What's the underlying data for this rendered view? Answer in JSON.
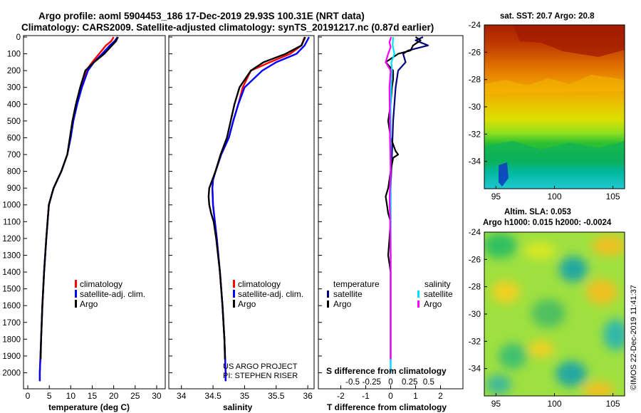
{
  "header": {
    "line1": "Argo profile: aoml 5904453_186 17-Dec-2019 29.93S 100.31E (NRT data)",
    "line2": "Climatology: CARS2009. Satellite-adjusted climatology: synTS_20191217.nc (0.87d earlier)"
  },
  "colors": {
    "red": "#ff0000",
    "blue": "#0000ff",
    "black": "#000000",
    "cyan": "#00e0ff",
    "magenta": "#ff00ff",
    "navy": "#000080"
  },
  "legends": {
    "temp": [
      "climatology",
      "satellite-adj. clim.",
      "Argo"
    ],
    "sal": [
      "climatology",
      "satellite-adj. clim.",
      "Argo"
    ],
    "diff_left_title": "temperature",
    "diff_left": [
      "satellite",
      "Argo"
    ],
    "diff_right_title": "salinity",
    "diff_right": [
      "satellite",
      "Argo"
    ]
  },
  "credits": {
    "project": "US ARGO PROJECT",
    "pi": "PI: STEPHEN RISER"
  },
  "diff_top_label": "S difference from climatology",
  "sst_title": "sat. SST: 20.7 Argo: 20.8",
  "sla_title1": "Altim. SLA: 0.053",
  "sla_title2": "Argo h1000: 0.015 h2000: -0.0024",
  "stamp": "©IMOS 22-Dec-2019 11:41:37",
  "chart_data": [
    {
      "type": "line",
      "name": "temperature-profile",
      "xlabel": "temperature (deg C)",
      "ylabel": "",
      "xlim": [
        -1,
        32
      ],
      "ylim": [
        2070,
        0
      ],
      "xticks": [
        0,
        5,
        10,
        15,
        20,
        25,
        30
      ],
      "yticks": [
        0,
        100,
        200,
        300,
        400,
        500,
        600,
        700,
        800,
        900,
        1000,
        1100,
        1200,
        1300,
        1400,
        1500,
        1600,
        1700,
        1800,
        1900,
        2000
      ],
      "series": [
        {
          "name": "climatology",
          "color": "#ff0000",
          "depth": [
            0,
            25,
            50,
            100,
            150,
            200,
            300,
            400,
            500,
            600,
            700,
            800,
            900,
            1000,
            1200,
            1400,
            1600,
            1800,
            2000,
            2050
          ],
          "values": [
            20.0,
            19.4,
            18.2,
            16.6,
            15.0,
            13.6,
            12.4,
            11.3,
            10.5,
            9.9,
            9.2,
            7.8,
            6.0,
            4.9,
            4.3,
            3.8,
            3.4,
            3.1,
            2.8,
            2.8
          ]
        },
        {
          "name": "satellite-adj. clim.",
          "color": "#0000ff",
          "depth": [
            0,
            25,
            50,
            100,
            150,
            200,
            300,
            400,
            500,
            600,
            700,
            800,
            900,
            1000,
            1200,
            1400,
            1600,
            1800,
            2000,
            2050
          ],
          "values": [
            20.9,
            20.2,
            19.1,
            17.3,
            15.4,
            14.0,
            12.6,
            11.5,
            10.6,
            10.0,
            9.2,
            7.8,
            6.0,
            4.9,
            4.3,
            3.8,
            3.4,
            3.1,
            2.8,
            2.8
          ]
        },
        {
          "name": "Argo",
          "color": "#000000",
          "depth": [
            0,
            25,
            50,
            100,
            150,
            200,
            300,
            400,
            500,
            600,
            700,
            800,
            900,
            1000,
            1200,
            1400,
            1600,
            1800,
            1920
          ],
          "values": [
            21.0,
            20.5,
            19.6,
            17.8,
            15.4,
            13.4,
            12.2,
            11.2,
            10.4,
            9.8,
            9.2,
            7.8,
            6.0,
            4.9,
            4.3,
            3.8,
            3.4,
            3.1,
            3.0
          ]
        }
      ]
    },
    {
      "type": "line",
      "name": "salinity-profile",
      "xlabel": "salinity",
      "ylabel": "",
      "xlim": [
        33.8,
        36.1
      ],
      "ylim": [
        2070,
        0
      ],
      "xticks": [
        34,
        34.5,
        35,
        35.5,
        36
      ],
      "series": [
        {
          "name": "climatology",
          "color": "#ff0000",
          "depth": [
            0,
            50,
            100,
            150,
            200,
            300,
            400,
            500,
            600,
            700,
            800,
            850,
            900,
            1000,
            1100,
            1200,
            1400,
            1600,
            1800,
            2000,
            2050
          ],
          "values": [
            35.95,
            35.9,
            35.72,
            35.4,
            35.1,
            34.97,
            34.9,
            34.82,
            34.75,
            34.63,
            34.54,
            34.5,
            34.49,
            34.5,
            34.53,
            34.56,
            34.61,
            34.65,
            34.68,
            34.7,
            34.7
          ]
        },
        {
          "name": "satellite-adj. clim.",
          "color": "#0000ff",
          "depth": [
            0,
            50,
            100,
            150,
            200,
            300,
            400,
            500,
            600,
            700,
            800,
            850,
            900,
            1000,
            1100,
            1200,
            1400,
            1600,
            1800,
            2000,
            2050
          ],
          "values": [
            36.02,
            35.95,
            35.82,
            35.5,
            35.28,
            35.0,
            34.9,
            34.82,
            34.75,
            34.63,
            34.54,
            34.5,
            34.49,
            34.5,
            34.53,
            34.56,
            34.61,
            34.65,
            34.68,
            34.7,
            34.7
          ]
        },
        {
          "name": "Argo",
          "color": "#000000",
          "depth": [
            0,
            50,
            100,
            150,
            200,
            300,
            400,
            500,
            600,
            700,
            800,
            850,
            900,
            950,
            1000,
            1050,
            1100,
            1200,
            1400,
            1600,
            1800,
            1920
          ],
          "values": [
            35.96,
            35.9,
            35.65,
            35.3,
            35.1,
            34.92,
            34.84,
            34.78,
            34.72,
            34.62,
            34.54,
            34.49,
            34.44,
            34.43,
            34.44,
            34.47,
            34.51,
            34.55,
            34.61,
            34.65,
            34.68,
            34.69
          ]
        }
      ]
    },
    {
      "type": "line",
      "name": "difference-from-climatology",
      "xlabel": "T difference from climatology",
      "xlim": [
        -2.9,
        2.9
      ],
      "ylim": [
        2070,
        0
      ],
      "xticks": [
        -2,
        -1,
        0,
        1,
        2
      ],
      "top_xlim": [
        -0.95,
        0.95
      ],
      "top_xticks": [
        -0.5,
        -0.25,
        0,
        0.25,
        0.5
      ],
      "series": [
        {
          "name": "T satellite",
          "color": "#000080",
          "depth": [
            0,
            20,
            50,
            80,
            100,
            150,
            200,
            300,
            500,
            700,
            900,
            1100,
            1400,
            1700,
            2000
          ],
          "values": [
            1.3,
            1.0,
            1.5,
            0.7,
            0.5,
            0.6,
            0.3,
            0.2,
            0.1,
            0.05,
            0.0,
            0.0,
            0.0,
            0.0,
            0.0
          ]
        },
        {
          "name": "T Argo",
          "color": "#000000",
          "depth": [
            0,
            20,
            50,
            80,
            100,
            150,
            200,
            250,
            300,
            400,
            500,
            600,
            680,
            700,
            720,
            800,
            900,
            950,
            1000,
            1050,
            1100,
            1200,
            1300,
            1400,
            1600,
            1800,
            1920
          ],
          "values": [
            1.0,
            1.2,
            0.9,
            0.8,
            0.3,
            -0.2,
            0.1,
            0.1,
            0.05,
            0.0,
            -0.1,
            0.0,
            0.2,
            0.3,
            0.1,
            0.0,
            -0.1,
            -0.2,
            -0.15,
            -0.1,
            0.0,
            -0.05,
            -0.1,
            0.0,
            0.0,
            0.0,
            0.0
          ]
        },
        {
          "name": "S satellite",
          "color": "#00e0ff",
          "depth": [
            0,
            50,
            100,
            150,
            200,
            300,
            400,
            500,
            700,
            900,
            1100,
            1300,
            1600,
            2000
          ],
          "values": [
            0.1,
            0.08,
            0.15,
            0.03,
            0.05,
            0.02,
            0.0,
            0.0,
            0.0,
            0.0,
            0.0,
            0.0,
            0.0,
            0.0
          ]
        },
        {
          "name": "S Argo",
          "color": "#ff00ff",
          "depth": [
            0,
            30,
            60,
            100,
            150,
            200,
            300,
            400,
            500,
            600,
            700,
            800,
            900,
            950,
            1000,
            1050,
            1100,
            1200,
            1300,
            1400,
            1600,
            1800,
            1920
          ],
          "values": [
            0.02,
            -0.05,
            0.0,
            -0.1,
            -0.2,
            0.0,
            -0.05,
            -0.04,
            -0.03,
            -0.03,
            -0.01,
            0.0,
            -0.03,
            -0.04,
            -0.04,
            -0.03,
            -0.02,
            -0.01,
            0.0,
            0.0,
            0.0,
            0.0,
            0.0
          ]
        }
      ]
    },
    {
      "type": "heatmap",
      "name": "satellite-sst-map",
      "title": "sat. SST: 20.7 Argo: 20.8",
      "xlim": [
        94,
        106
      ],
      "ylim": [
        -36,
        -24
      ],
      "xticks": [
        95,
        100,
        105
      ],
      "yticks": [
        -24,
        -26,
        -28,
        -30,
        -32,
        -34
      ]
    },
    {
      "type": "heatmap",
      "name": "altimetry-sla-map",
      "title": "Altim. SLA: 0.053",
      "xlim": [
        94,
        106
      ],
      "ylim": [
        -36,
        -24
      ],
      "xticks": [
        95,
        100,
        105
      ],
      "yticks": [
        -24,
        -26,
        -28,
        -30,
        -32,
        -34
      ]
    }
  ]
}
